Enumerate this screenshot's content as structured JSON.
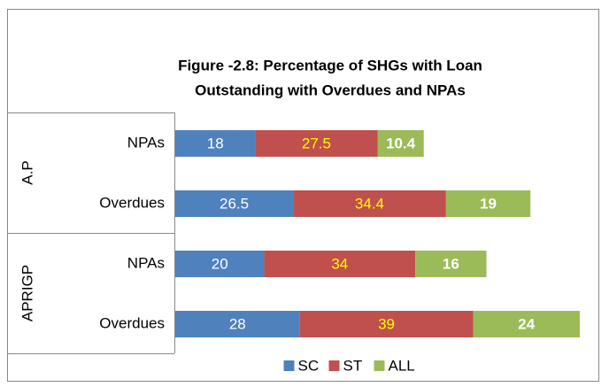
{
  "chart_data": {
    "type": "stacked-bar-horizontal",
    "title": [
      "Figure -2.8:  Percentage of SHGs with Loan",
      "Outstanding with Overdues and NPAs"
    ],
    "groups": [
      {
        "name": "A.P",
        "categories": [
          "NPAs",
          "Overdues"
        ]
      },
      {
        "name": "APRIGP",
        "categories": [
          "NPAs",
          "Overdues"
        ]
      }
    ],
    "series": [
      {
        "name": "SC",
        "color": "#4f81bd",
        "label_color": "#ffffff",
        "label_bold": false,
        "values": [
          18,
          26.5,
          20,
          28
        ]
      },
      {
        "name": "ST",
        "color": "#c0504d",
        "label_color": "#ffff00",
        "label_bold": false,
        "values": [
          27.5,
          34.4,
          34,
          39
        ]
      },
      {
        "name": "ALL",
        "color": "#9bbb59",
        "label_color": "#ffffff",
        "label_bold": true,
        "values": [
          10.4,
          19,
          16,
          24
        ]
      }
    ],
    "legend": "bottom"
  }
}
